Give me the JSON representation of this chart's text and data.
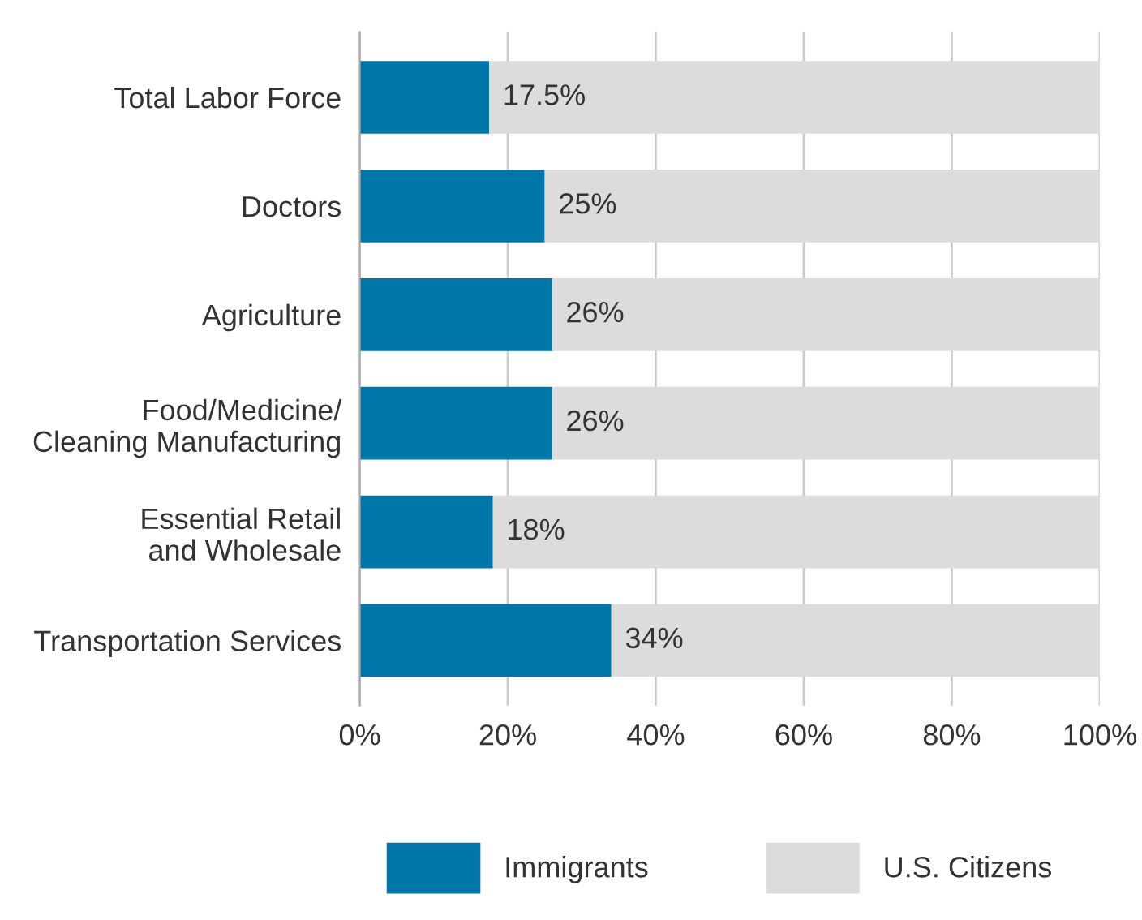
{
  "chart_data": {
    "type": "bar",
    "orientation": "horizontal",
    "stacked": true,
    "categories": [
      "Total Labor Force",
      "Doctors",
      "Agriculture",
      "Food/Medicine/\nCleaning Manufacturing",
      "Essential Retail\nand Wholesale",
      "Transportation Services"
    ],
    "series": [
      {
        "name": "Immigrants",
        "color": "#0077a8",
        "values": [
          17.5,
          25,
          26,
          26,
          18,
          34
        ],
        "value_labels": [
          "17.5%",
          "25%",
          "26%",
          "26%",
          "18%",
          "34%"
        ]
      },
      {
        "name": "U.S. Citizens",
        "color": "#dcdcdc",
        "values": [
          82.5,
          75,
          74,
          74,
          82,
          66
        ]
      }
    ],
    "xlim": [
      0,
      100
    ],
    "xticks": [
      {
        "value": 0,
        "label": "0%"
      },
      {
        "value": 20,
        "label": "20%"
      },
      {
        "value": 40,
        "label": "40%"
      },
      {
        "value": 60,
        "label": "60%"
      },
      {
        "value": 80,
        "label": "80%"
      },
      {
        "value": 100,
        "label": "100%"
      }
    ],
    "grid": "x",
    "legend": "bottom"
  }
}
